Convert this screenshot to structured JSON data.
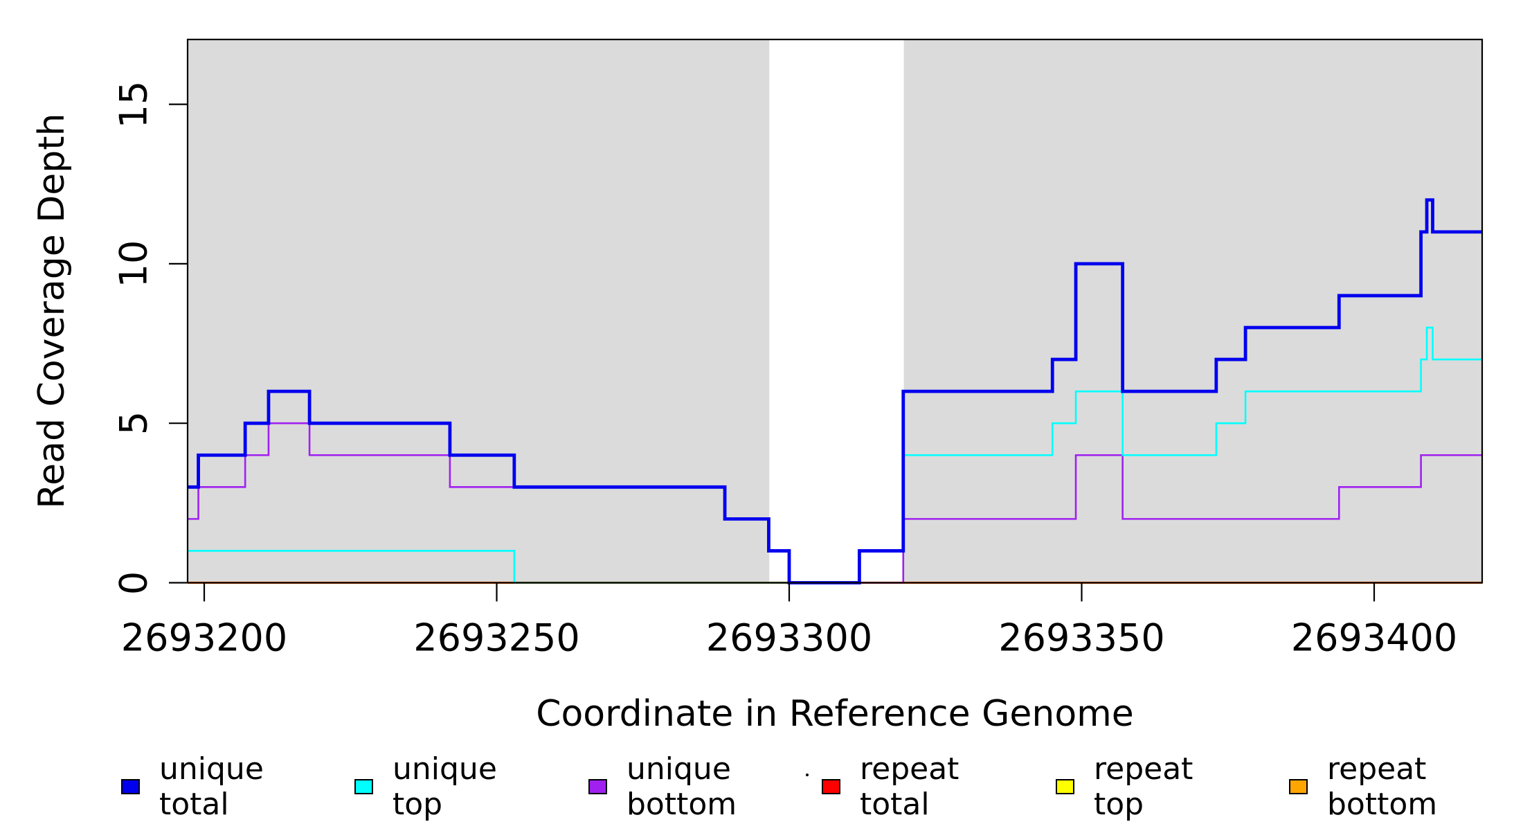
{
  "chart_data": {
    "type": "line",
    "subtype": "step-after-coverage-plot",
    "title": "",
    "xlabel": "Coordinate in Reference Genome",
    "ylabel": "Read Coverage Depth",
    "xlim": [
      2693197,
      2693419
    ],
    "ylim": [
      0,
      17
    ],
    "x_ticks": [
      2693200,
      2693250,
      2693300,
      2693350,
      2693400
    ],
    "x_tick_labels": [
      "2693200",
      "2693250",
      "2693300",
      "2693350",
      "2693400"
    ],
    "y_ticks": [
      0,
      5,
      10,
      15
    ],
    "y_tick_labels": [
      "0",
      "5",
      "10",
      "15"
    ],
    "grid": false,
    "plot_background": "#FFFFFF",
    "box_color": "#000000",
    "band_color": "#DBDBDB",
    "shaded_regions": [
      {
        "x0": 2693197,
        "x1": 2693296.6
      },
      {
        "x0": 2693319.6,
        "x1": 2693419
      }
    ],
    "xmax": 2693419,
    "series": [
      {
        "name": "unique total",
        "color": "#0000EE",
        "width": 4.8,
        "points": [
          [
            2693197,
            3
          ],
          [
            2693199,
            4
          ],
          [
            2693207,
            5
          ],
          [
            2693211,
            6
          ],
          [
            2693218,
            5
          ],
          [
            2693242,
            4
          ],
          [
            2693253,
            3
          ],
          [
            2693289,
            2
          ],
          [
            2693296.5,
            1
          ],
          [
            2693300,
            0
          ],
          [
            2693312,
            1
          ],
          [
            2693319.5,
            6
          ],
          [
            2693345,
            7
          ],
          [
            2693349,
            10
          ],
          [
            2693357,
            6
          ],
          [
            2693373,
            7
          ],
          [
            2693378,
            8
          ],
          [
            2693394,
            9
          ],
          [
            2693408,
            11
          ],
          [
            2693409,
            12
          ],
          [
            2693410,
            11
          ]
        ]
      },
      {
        "name": "unique top",
        "color": "#00FFFF",
        "width": 2.6,
        "points": [
          [
            2693197,
            1
          ],
          [
            2693253,
            0
          ],
          [
            2693312,
            1
          ],
          [
            2693319.5,
            4
          ],
          [
            2693345,
            5
          ],
          [
            2693349,
            6
          ],
          [
            2693357,
            4
          ],
          [
            2693373,
            5
          ],
          [
            2693378,
            6
          ],
          [
            2693408,
            7
          ],
          [
            2693409,
            8
          ],
          [
            2693410,
            7
          ]
        ]
      },
      {
        "name": "unique bottom",
        "color": "#A020F0",
        "width": 2.6,
        "points": [
          [
            2693197,
            2
          ],
          [
            2693199,
            3
          ],
          [
            2693207,
            4
          ],
          [
            2693211,
            5
          ],
          [
            2693218,
            4
          ],
          [
            2693242,
            3
          ],
          [
            2693289,
            2
          ],
          [
            2693296.5,
            1
          ],
          [
            2693300,
            0
          ],
          [
            2693319.5,
            2
          ],
          [
            2693349,
            4
          ],
          [
            2693357,
            2
          ],
          [
            2693394,
            3
          ],
          [
            2693408,
            4
          ]
        ]
      },
      {
        "name": "repeat total",
        "color": "#FF0000",
        "width": 2.6,
        "points": [
          [
            2693197,
            0
          ]
        ]
      },
      {
        "name": "repeat top",
        "color": "#FFFF00",
        "width": 2.6,
        "points": [
          [
            2693197,
            0
          ]
        ]
      },
      {
        "name": "repeat bottom",
        "color": "#FFA500",
        "width": 3.2,
        "points": [
          [
            2693197,
            0
          ]
        ]
      }
    ],
    "legend_position": "bottom",
    "legend": [
      {
        "label": "unique total",
        "color": "#0000EE"
      },
      {
        "label": "unique top",
        "color": "#00FFFF"
      },
      {
        "label": "unique bottom",
        "color": "#A020F0"
      },
      {
        "label": "repeat total",
        "color": "#FF0000"
      },
      {
        "label": "repeat top",
        "color": "#FFFF00"
      },
      {
        "label": "repeat bottom",
        "color": "#FFA500"
      }
    ],
    "artifacts": {
      "legend_stray_dot": true
    }
  }
}
